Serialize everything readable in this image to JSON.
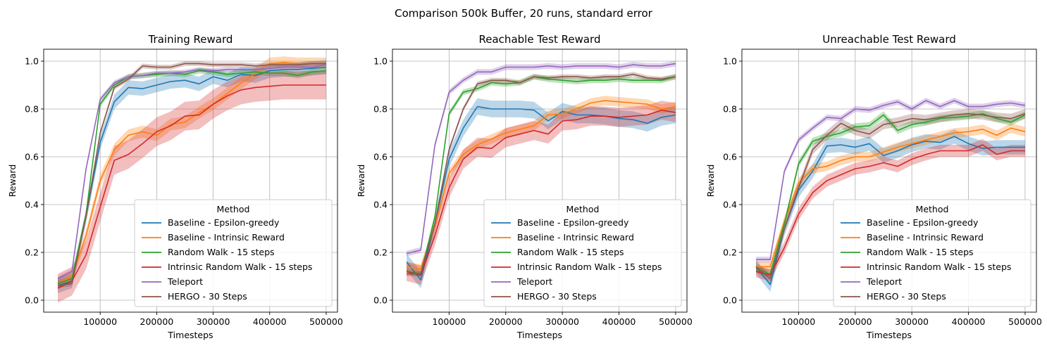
{
  "figure": {
    "suptitle": "Comparison 500k Buffer, 20 runs, standard error"
  },
  "colors": {
    "Baseline - Epsilon-greedy": "#1f77b4",
    "Baseline - Intrinsic Reward": "#ff7f0e",
    "Random Walk - 15 steps": "#2ca02c",
    "Intrinsic Random Walk - 15 steps": "#d62728",
    "Teleport": "#9467bd",
    "HERGO - 30 Steps": "#8c564b"
  },
  "chart_data": [
    {
      "type": "line",
      "title": "Training Reward",
      "xlabel": "Timesteps",
      "ylabel": "Reward",
      "xlim": [
        0,
        520000
      ],
      "ylim": [
        -0.05,
        1.05
      ],
      "xticks": [
        100000,
        200000,
        300000,
        400000,
        500000
      ],
      "yticks": [
        0.0,
        0.2,
        0.4,
        0.6,
        0.8,
        1.0
      ],
      "grid": true,
      "legend": {
        "title": "Method",
        "placement": "lower-right"
      },
      "x": [
        25000,
        50000,
        75000,
        100000,
        125000,
        150000,
        175000,
        200000,
        225000,
        250000,
        275000,
        300000,
        325000,
        350000,
        375000,
        400000,
        425000,
        450000,
        475000,
        500000
      ],
      "series": [
        {
          "name": "Baseline - Epsilon-greedy",
          "err": 0.03,
          "values": [
            0.06,
            0.08,
            0.35,
            0.66,
            0.83,
            0.89,
            0.885,
            0.9,
            0.915,
            0.92,
            0.905,
            0.935,
            0.92,
            0.945,
            0.94,
            0.96,
            0.965,
            0.965,
            0.97,
            0.975
          ]
        },
        {
          "name": "Baseline - Intrinsic Reward",
          "err": 0.025,
          "values": [
            0.07,
            0.1,
            0.27,
            0.5,
            0.63,
            0.69,
            0.705,
            0.69,
            0.735,
            0.745,
            0.785,
            0.82,
            0.865,
            0.91,
            0.95,
            0.99,
            0.995,
            0.99,
            0.99,
            0.99
          ]
        },
        {
          "name": "Random Walk - 15 steps",
          "err": 0.012,
          "values": [
            0.07,
            0.09,
            0.36,
            0.82,
            0.9,
            0.935,
            0.94,
            0.945,
            0.95,
            0.945,
            0.96,
            0.955,
            0.945,
            0.95,
            0.955,
            0.95,
            0.95,
            0.94,
            0.955,
            0.96
          ]
        },
        {
          "name": "Intrinsic Random Walk - 15 steps",
          "err": 0.06,
          "values": [
            0.05,
            0.08,
            0.19,
            0.39,
            0.585,
            0.61,
            0.655,
            0.705,
            0.73,
            0.77,
            0.775,
            0.82,
            0.855,
            0.88,
            0.89,
            0.895,
            0.9,
            0.9,
            0.9,
            0.9
          ]
        },
        {
          "name": "Teleport",
          "err": 0.01,
          "values": [
            0.09,
            0.12,
            0.55,
            0.84,
            0.91,
            0.935,
            0.94,
            0.95,
            0.95,
            0.955,
            0.965,
            0.96,
            0.965,
            0.965,
            0.965,
            0.97,
            0.975,
            0.975,
            0.975,
            0.985
          ]
        },
        {
          "name": "HERGO - 30 Steps",
          "err": 0.01,
          "values": [
            0.06,
            0.07,
            0.35,
            0.7,
            0.89,
            0.925,
            0.98,
            0.975,
            0.975,
            0.99,
            0.99,
            0.985,
            0.985,
            0.985,
            0.98,
            0.985,
            0.985,
            0.985,
            0.99,
            0.99
          ]
        }
      ]
    },
    {
      "type": "line",
      "title": "Reachable Test Reward",
      "xlabel": "Timesteps",
      "ylabel": "Reward",
      "xlim": [
        0,
        520000
      ],
      "ylim": [
        -0.05,
        1.05
      ],
      "xticks": [
        100000,
        200000,
        300000,
        400000,
        500000
      ],
      "yticks": [
        0.0,
        0.2,
        0.4,
        0.6,
        0.8,
        1.0
      ],
      "grid": true,
      "legend": {
        "title": "Method",
        "placement": "lower-right"
      },
      "x": [
        25000,
        50000,
        75000,
        100000,
        125000,
        150000,
        175000,
        200000,
        225000,
        250000,
        275000,
        300000,
        325000,
        350000,
        375000,
        400000,
        425000,
        450000,
        475000,
        500000
      ],
      "series": [
        {
          "name": "Baseline - Epsilon-greedy",
          "err": 0.035,
          "values": [
            0.16,
            0.085,
            0.32,
            0.59,
            0.72,
            0.81,
            0.8,
            0.8,
            0.8,
            0.795,
            0.75,
            0.79,
            0.775,
            0.775,
            0.77,
            0.76,
            0.755,
            0.74,
            0.765,
            0.775
          ]
        },
        {
          "name": "Baseline - Intrinsic Reward",
          "err": 0.02,
          "values": [
            0.14,
            0.13,
            0.31,
            0.53,
            0.61,
            0.65,
            0.675,
            0.7,
            0.715,
            0.73,
            0.775,
            0.78,
            0.8,
            0.825,
            0.835,
            0.83,
            0.825,
            0.82,
            0.8,
            0.81
          ]
        },
        {
          "name": "Random Walk - 15 steps",
          "err": 0.012,
          "values": [
            0.12,
            0.11,
            0.35,
            0.78,
            0.87,
            0.885,
            0.91,
            0.905,
            0.91,
            0.935,
            0.925,
            0.92,
            0.915,
            0.92,
            0.92,
            0.925,
            0.92,
            0.92,
            0.92,
            0.935
          ]
        },
        {
          "name": "Intrinsic Random Walk - 15 steps",
          "err": 0.04,
          "values": [
            0.12,
            0.105,
            0.27,
            0.47,
            0.59,
            0.64,
            0.635,
            0.68,
            0.695,
            0.71,
            0.695,
            0.75,
            0.755,
            0.77,
            0.77,
            0.765,
            0.77,
            0.775,
            0.795,
            0.785
          ]
        },
        {
          "name": "Teleport",
          "err": 0.012,
          "values": [
            0.195,
            0.21,
            0.65,
            0.87,
            0.92,
            0.955,
            0.955,
            0.975,
            0.975,
            0.975,
            0.98,
            0.975,
            0.98,
            0.98,
            0.98,
            0.975,
            0.985,
            0.98,
            0.98,
            0.99
          ]
        },
        {
          "name": "HERGO - 30 Steps",
          "err": 0.01,
          "values": [
            0.11,
            0.11,
            0.32,
            0.63,
            0.8,
            0.905,
            0.92,
            0.92,
            0.91,
            0.935,
            0.93,
            0.935,
            0.935,
            0.93,
            0.935,
            0.935,
            0.945,
            0.93,
            0.925,
            0.935
          ]
        }
      ]
    },
    {
      "type": "line",
      "title": "Unreachable Test Reward",
      "xlabel": "Timesteps",
      "ylabel": "Reward",
      "xlim": [
        0,
        520000
      ],
      "ylim": [
        -0.05,
        1.05
      ],
      "xticks": [
        100000,
        200000,
        300000,
        400000,
        500000
      ],
      "yticks": [
        0.0,
        0.2,
        0.4,
        0.6,
        0.8,
        1.0
      ],
      "grid": true,
      "legend": {
        "title": "Method",
        "placement": "lower-right"
      },
      "x": [
        25000,
        50000,
        75000,
        100000,
        125000,
        150000,
        175000,
        200000,
        225000,
        250000,
        275000,
        300000,
        325000,
        350000,
        375000,
        400000,
        425000,
        450000,
        475000,
        500000
      ],
      "series": [
        {
          "name": "Baseline - Epsilon-greedy",
          "err": 0.03,
          "values": [
            0.14,
            0.065,
            0.3,
            0.46,
            0.54,
            0.645,
            0.65,
            0.64,
            0.655,
            0.605,
            0.625,
            0.65,
            0.665,
            0.66,
            0.685,
            0.655,
            0.635,
            0.64,
            0.64,
            0.64
          ]
        },
        {
          "name": "Baseline - Intrinsic Reward",
          "err": 0.02,
          "values": [
            0.14,
            0.14,
            0.33,
            0.49,
            0.55,
            0.56,
            0.585,
            0.6,
            0.6,
            0.62,
            0.64,
            0.655,
            0.67,
            0.685,
            0.7,
            0.705,
            0.715,
            0.69,
            0.72,
            0.705
          ]
        },
        {
          "name": "Random Walk - 15 steps",
          "err": 0.015,
          "values": [
            0.13,
            0.11,
            0.32,
            0.57,
            0.665,
            0.685,
            0.7,
            0.725,
            0.73,
            0.775,
            0.71,
            0.735,
            0.745,
            0.76,
            0.765,
            0.77,
            0.78,
            0.76,
            0.745,
            0.775
          ]
        },
        {
          "name": "Intrinsic Random Walk - 15 steps",
          "err": 0.025,
          "values": [
            0.12,
            0.105,
            0.22,
            0.36,
            0.45,
            0.5,
            0.525,
            0.55,
            0.56,
            0.575,
            0.56,
            0.59,
            0.61,
            0.625,
            0.625,
            0.625,
            0.65,
            0.61,
            0.625,
            0.625
          ]
        },
        {
          "name": "Teleport",
          "err": 0.012,
          "values": [
            0.17,
            0.17,
            0.54,
            0.67,
            0.72,
            0.765,
            0.76,
            0.8,
            0.795,
            0.815,
            0.83,
            0.8,
            0.835,
            0.81,
            0.835,
            0.81,
            0.81,
            0.82,
            0.825,
            0.815
          ]
        },
        {
          "name": "HERGO - 30 Steps",
          "err": 0.02,
          "values": [
            0.14,
            0.09,
            0.3,
            0.47,
            0.63,
            0.69,
            0.74,
            0.71,
            0.695,
            0.735,
            0.745,
            0.76,
            0.755,
            0.765,
            0.775,
            0.78,
            0.775,
            0.765,
            0.76,
            0.78
          ]
        }
      ]
    }
  ]
}
